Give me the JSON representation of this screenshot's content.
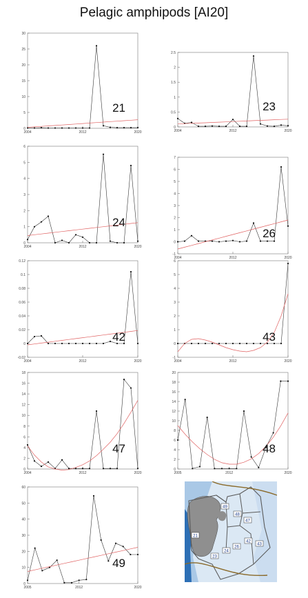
{
  "page": {
    "title": "Pelagic amphipods [AI20]"
  },
  "colors": {
    "data_line": "#333333",
    "trend_line": "#e06060",
    "axis": "#777777",
    "grid": "#dddddd"
  },
  "chart_data": [
    {
      "id": "21",
      "type": "line",
      "title": "",
      "area_label": "21",
      "xlim": [
        2004,
        2020
      ],
      "ylim": [
        0,
        30
      ],
      "yticks": [
        0,
        5,
        10,
        15,
        20,
        25,
        30
      ],
      "xticks": [
        2004,
        2012,
        2020
      ],
      "x": [
        2004,
        2005,
        2006,
        2007,
        2008,
        2009,
        2010,
        2011,
        2012,
        2013,
        2014,
        2015,
        2016,
        2017,
        2018,
        2019,
        2020
      ],
      "series": [
        {
          "kind": "observed",
          "values": [
            0.1,
            0.1,
            0.2,
            0.1,
            0.1,
            0.1,
            0.1,
            0.1,
            0.1,
            0.1,
            26,
            0.8,
            0.3,
            0.2,
            0.2,
            0.2,
            0.2
          ]
        },
        {
          "kind": "trend",
          "values": [
            0.3,
            0.45,
            0.6,
            0.75,
            0.9,
            1.05,
            1.2,
            1.35,
            1.5,
            1.65,
            1.8,
            1.95,
            2.1,
            2.25,
            2.4,
            2.55,
            2.7
          ]
        }
      ]
    },
    {
      "id": "23",
      "type": "line",
      "title": "",
      "area_label": "23",
      "xlim": [
        2004,
        2020
      ],
      "ylim": [
        0,
        2.5
      ],
      "yticks": [
        0,
        0.5,
        1,
        1.5,
        2,
        2.5
      ],
      "xticks": [
        2004,
        2012,
        2020
      ],
      "x": [
        2004,
        2005,
        2006,
        2007,
        2008,
        2009,
        2010,
        2011,
        2012,
        2013,
        2014,
        2015,
        2016,
        2017,
        2018,
        2019,
        2020
      ],
      "series": [
        {
          "kind": "observed",
          "values": [
            0.28,
            0.12,
            0.15,
            0.02,
            0.02,
            0.03,
            0.02,
            0.02,
            0.25,
            0.02,
            0.02,
            2.38,
            0.1,
            0.03,
            0.02,
            0.06,
            0.04
          ]
        },
        {
          "kind": "trend",
          "values": [
            0.1,
            0.11,
            0.12,
            0.13,
            0.14,
            0.15,
            0.16,
            0.17,
            0.18,
            0.19,
            0.2,
            0.21,
            0.22,
            0.23,
            0.24,
            0.25,
            0.26
          ]
        }
      ]
    },
    {
      "id": "24",
      "type": "line",
      "title": "",
      "area_label": "24",
      "xlim": [
        2004,
        2020
      ],
      "ylim": [
        0,
        6
      ],
      "yticks": [
        0,
        1,
        2,
        3,
        4,
        5,
        6
      ],
      "xticks": [
        2004,
        2012,
        2020
      ],
      "x": [
        2004,
        2005,
        2006,
        2007,
        2008,
        2009,
        2010,
        2011,
        2012,
        2013,
        2014,
        2015,
        2016,
        2017,
        2018,
        2019,
        2020
      ],
      "series": [
        {
          "kind": "observed",
          "values": [
            0.2,
            1.0,
            1.3,
            1.65,
            0.0,
            0.15,
            0.0,
            0.5,
            0.35,
            0.0,
            0.0,
            5.5,
            0.1,
            0.0,
            0.0,
            4.8,
            0.1
          ]
        },
        {
          "kind": "trend",
          "values": [
            0.45,
            0.5,
            0.55,
            0.6,
            0.65,
            0.7,
            0.75,
            0.8,
            0.85,
            0.9,
            0.95,
            1.0,
            1.05,
            1.1,
            1.15,
            1.2,
            1.25
          ]
        }
      ]
    },
    {
      "id": "26",
      "type": "line",
      "title": "",
      "area_label": "26",
      "xlim": [
        2004,
        2020
      ],
      "ylim": [
        -1,
        7
      ],
      "yticks": [
        -1,
        0,
        1,
        2,
        3,
        4,
        5,
        6,
        7
      ],
      "xticks": [
        2004,
        2012,
        2020
      ],
      "x": [
        2004,
        2005,
        2006,
        2007,
        2008,
        2009,
        2010,
        2011,
        2012,
        2013,
        2014,
        2015,
        2016,
        2017,
        2018,
        2019,
        2020
      ],
      "series": [
        {
          "kind": "observed",
          "values": [
            0.0,
            0.05,
            0.5,
            0.05,
            0.05,
            0.05,
            0.0,
            0.05,
            0.1,
            0.0,
            0.05,
            1.55,
            0.05,
            0.05,
            0.05,
            6.2,
            1.3
          ]
        },
        {
          "kind": "trend",
          "values": [
            -0.6,
            -0.45,
            -0.3,
            -0.15,
            0.0,
            0.15,
            0.3,
            0.45,
            0.6,
            0.75,
            0.9,
            1.05,
            1.2,
            1.35,
            1.5,
            1.65,
            1.8
          ]
        }
      ]
    },
    {
      "id": "42",
      "type": "line",
      "title": "",
      "area_label": "42",
      "xlim": [
        2004,
        2020
      ],
      "ylim": [
        -0.02,
        0.12
      ],
      "yticks": [
        -0.02,
        0,
        0.02,
        0.04,
        0.06,
        0.08,
        0.1,
        0.12
      ],
      "xticks": [
        2004,
        2012,
        2020
      ],
      "x": [
        2004,
        2005,
        2006,
        2007,
        2008,
        2009,
        2010,
        2011,
        2012,
        2013,
        2014,
        2015,
        2016,
        2017,
        2018,
        2019,
        2020
      ],
      "series": [
        {
          "kind": "observed",
          "values": [
            0.0,
            0.01,
            0.011,
            0.0,
            0.0,
            0.0,
            0.0,
            0.0,
            0.0,
            0.0,
            0.0,
            0.0,
            0.003,
            0.0,
            0.0,
            0.104,
            0.0
          ]
        },
        {
          "kind": "trend",
          "values": [
            -0.002,
            -0.0007,
            0.0006,
            0.0019,
            0.0032,
            0.0045,
            0.0058,
            0.0071,
            0.0084,
            0.0097,
            0.011,
            0.0123,
            0.0136,
            0.0149,
            0.0162,
            0.0175,
            0.0188
          ]
        }
      ]
    },
    {
      "id": "43",
      "type": "line",
      "title": "",
      "area_label": "43",
      "xlim": [
        2004,
        2020
      ],
      "ylim": [
        -1,
        6
      ],
      "yticks": [
        -1,
        0,
        1,
        2,
        3,
        4,
        5,
        6
      ],
      "xticks": [
        2004,
        2012,
        2020
      ],
      "x": [
        2004,
        2005,
        2006,
        2007,
        2008,
        2009,
        2010,
        2011,
        2012,
        2013,
        2014,
        2015,
        2016,
        2017,
        2018,
        2019,
        2020
      ],
      "series": [
        {
          "kind": "observed",
          "values": [
            0,
            0,
            0,
            0,
            0,
            0,
            0,
            0,
            0,
            0,
            0,
            0,
            0,
            0,
            0,
            0,
            5.8
          ]
        },
        {
          "kind": "trend",
          "values": [
            -0.6,
            0.0,
            0.3,
            0.35,
            0.25,
            0.1,
            -0.1,
            -0.3,
            -0.45,
            -0.55,
            -0.6,
            -0.5,
            -0.3,
            0.1,
            0.8,
            2.0,
            3.6
          ]
        }
      ]
    },
    {
      "id": "47",
      "type": "line",
      "title": "",
      "area_label": "47",
      "xlim": [
        2004,
        2020
      ],
      "ylim": [
        0,
        18
      ],
      "yticks": [
        0,
        2,
        4,
        6,
        8,
        10,
        12,
        14,
        16,
        18
      ],
      "xticks": [
        2004,
        2012,
        2020
      ],
      "x": [
        2004,
        2005,
        2006,
        2007,
        2008,
        2009,
        2010,
        2011,
        2012,
        2013,
        2014,
        2015,
        2016,
        2017,
        2018,
        2019,
        2020
      ],
      "series": [
        {
          "kind": "observed",
          "values": [
            4.5,
            1.5,
            0.5,
            1.3,
            0.1,
            1.7,
            0.1,
            0.1,
            0.1,
            0.1,
            10.8,
            0.1,
            0.1,
            0.1,
            16.7,
            15.1,
            0.1
          ]
        },
        {
          "kind": "trend",
          "values": [
            4.3,
            2.6,
            1.3,
            0.4,
            0.0,
            -0.2,
            -0.1,
            0.3,
            0.8,
            1.5,
            2.5,
            3.7,
            5.0,
            6.6,
            8.5,
            10.6,
            12.8
          ]
        }
      ]
    },
    {
      "id": "48",
      "type": "line",
      "title": "",
      "area_label": "48",
      "xlim": [
        2005,
        2020
      ],
      "ylim": [
        0,
        20
      ],
      "yticks": [
        0,
        2,
        4,
        6,
        8,
        10,
        12,
        14,
        16,
        18,
        20
      ],
      "xticks": [
        2005,
        2012,
        2020
      ],
      "x": [
        2005,
        2006,
        2007,
        2008,
        2009,
        2010,
        2011,
        2012,
        2013,
        2014,
        2015,
        2016,
        2017,
        2018,
        2019,
        2020
      ],
      "series": [
        {
          "kind": "observed",
          "values": [
            6.0,
            14.4,
            0.1,
            0.5,
            10.7,
            0.1,
            0.1,
            0.1,
            0.1,
            12.0,
            2.5,
            0.3,
            4.5,
            7.5,
            18.2,
            18.2
          ]
        },
        {
          "kind": "trend",
          "values": [
            9.0,
            7.2,
            5.6,
            4.2,
            3.0,
            2.0,
            1.3,
            1.0,
            1.0,
            1.4,
            2.1,
            3.2,
            4.7,
            6.6,
            8.9,
            11.6
          ]
        }
      ]
    },
    {
      "id": "49",
      "type": "line",
      "title": "",
      "area_label": "49",
      "xlim": [
        2005,
        2020
      ],
      "ylim": [
        0,
        60
      ],
      "yticks": [
        0,
        10,
        20,
        30,
        40,
        50,
        60
      ],
      "xticks": [
        2005,
        2012,
        2020
      ],
      "x": [
        2005,
        2006,
        2007,
        2008,
        2009,
        2010,
        2011,
        2012,
        2013,
        2014,
        2015,
        2016,
        2017,
        2018,
        2019,
        2020
      ],
      "series": [
        {
          "kind": "observed",
          "values": [
            2,
            22,
            8,
            10,
            14.5,
            0.5,
            0.5,
            2,
            2.5,
            54.5,
            27,
            14,
            25,
            23,
            18,
            18
          ]
        },
        {
          "kind": "trend",
          "values": [
            7.5,
            8.5,
            9.5,
            10.5,
            11.5,
            12.5,
            13.5,
            14.5,
            15.5,
            16.5,
            17.5,
            18.5,
            19.5,
            20.5,
            21.5,
            22.5
          ]
        }
      ]
    }
  ],
  "map": {
    "land_color": "#8f8f8f",
    "sea_light": "#dbe8f4",
    "sea_mid": "#a9c8e6",
    "sea_deep": "#2d6fb5",
    "box_labels": [
      "49",
      "48",
      "47",
      "21",
      "23",
      "24",
      "26",
      "42",
      "43"
    ]
  }
}
